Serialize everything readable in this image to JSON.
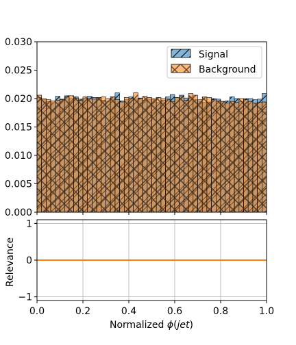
{
  "chart_data": [
    {
      "type": "histogram",
      "legend_position": "upper-right",
      "ylim": [
        0,
        0.03
      ],
      "xlim": [
        0,
        1
      ],
      "yticks": [
        "0.000",
        "0.005",
        "0.010",
        "0.015",
        "0.020",
        "0.025",
        "0.030"
      ],
      "grid": false,
      "bin_edges_start": 0,
      "bin_width": 0.02,
      "series": [
        {
          "name": "Signal",
          "color": "#1f77b4",
          "fill_opacity": 0.55,
          "hatch": "diagonal-up",
          "values": [
            0.0202,
            0.0198,
            0.0195,
            0.0193,
            0.0204,
            0.0199,
            0.0205,
            0.02,
            0.0203,
            0.0199,
            0.0201,
            0.0204,
            0.0202,
            0.0201,
            0.0197,
            0.0195,
            0.0203,
            0.021,
            0.0196,
            0.0198,
            0.0203,
            0.0199,
            0.0201,
            0.0197,
            0.0199,
            0.0198,
            0.0193,
            0.0197,
            0.0203,
            0.0207,
            0.0202,
            0.0206,
            0.0201,
            0.0203,
            0.0198,
            0.0196,
            0.0193,
            0.0194,
            0.02,
            0.0199,
            0.0195,
            0.0196,
            0.0203,
            0.02,
            0.0195,
            0.02,
            0.02,
            0.0198,
            0.0199,
            0.0209
          ]
        },
        {
          "name": "Background",
          "color": "#ff7f0e",
          "fill_opacity": 0.55,
          "hatch": "cross",
          "values": [
            0.0206,
            0.02,
            0.0198,
            0.0196,
            0.0197,
            0.0198,
            0.0203,
            0.0205,
            0.0201,
            0.0197,
            0.0203,
            0.02,
            0.0199,
            0.0202,
            0.0203,
            0.02,
            0.0203,
            0.0198,
            0.0194,
            0.0202,
            0.02,
            0.021,
            0.02,
            0.0204,
            0.0202,
            0.02,
            0.0202,
            0.02,
            0.0199,
            0.0195,
            0.0202,
            0.0203,
            0.0197,
            0.0209,
            0.0206,
            0.0198,
            0.0203,
            0.0202,
            0.0198,
            0.0196,
            0.0195,
            0.0192,
            0.0195,
            0.0193,
            0.02,
            0.0198,
            0.0195,
            0.0192,
            0.0193,
            0.0194
          ]
        }
      ]
    },
    {
      "type": "line",
      "ylabel": "Relevance",
      "xlabel": "Normalized ϕ(jet)",
      "xlabel_prefix": "Normalized ",
      "xlabel_phi": "ϕ",
      "xlabel_paren_open": "(",
      "xlabel_jet": "jet",
      "xlabel_paren_close": ")",
      "xlim": [
        0,
        1
      ],
      "ylim": [
        -1.1,
        1.1
      ],
      "xticks": [
        "0.0",
        "0.2",
        "0.4",
        "0.6",
        "0.8",
        "1.0"
      ],
      "yticks": [
        "−1",
        "0",
        "1"
      ],
      "grid": true,
      "series": [
        {
          "color": "#1f77b4",
          "x": [
            0,
            0.2,
            0.4,
            0.6,
            0.8,
            1.0
          ],
          "y": [
            0,
            0,
            0,
            0,
            0,
            0
          ]
        },
        {
          "color": "#ff7f0e",
          "x": [
            0,
            0.2,
            0.4,
            0.6,
            0.8,
            1.0
          ],
          "y": [
            0,
            0,
            0,
            0,
            0,
            0
          ]
        }
      ]
    }
  ]
}
